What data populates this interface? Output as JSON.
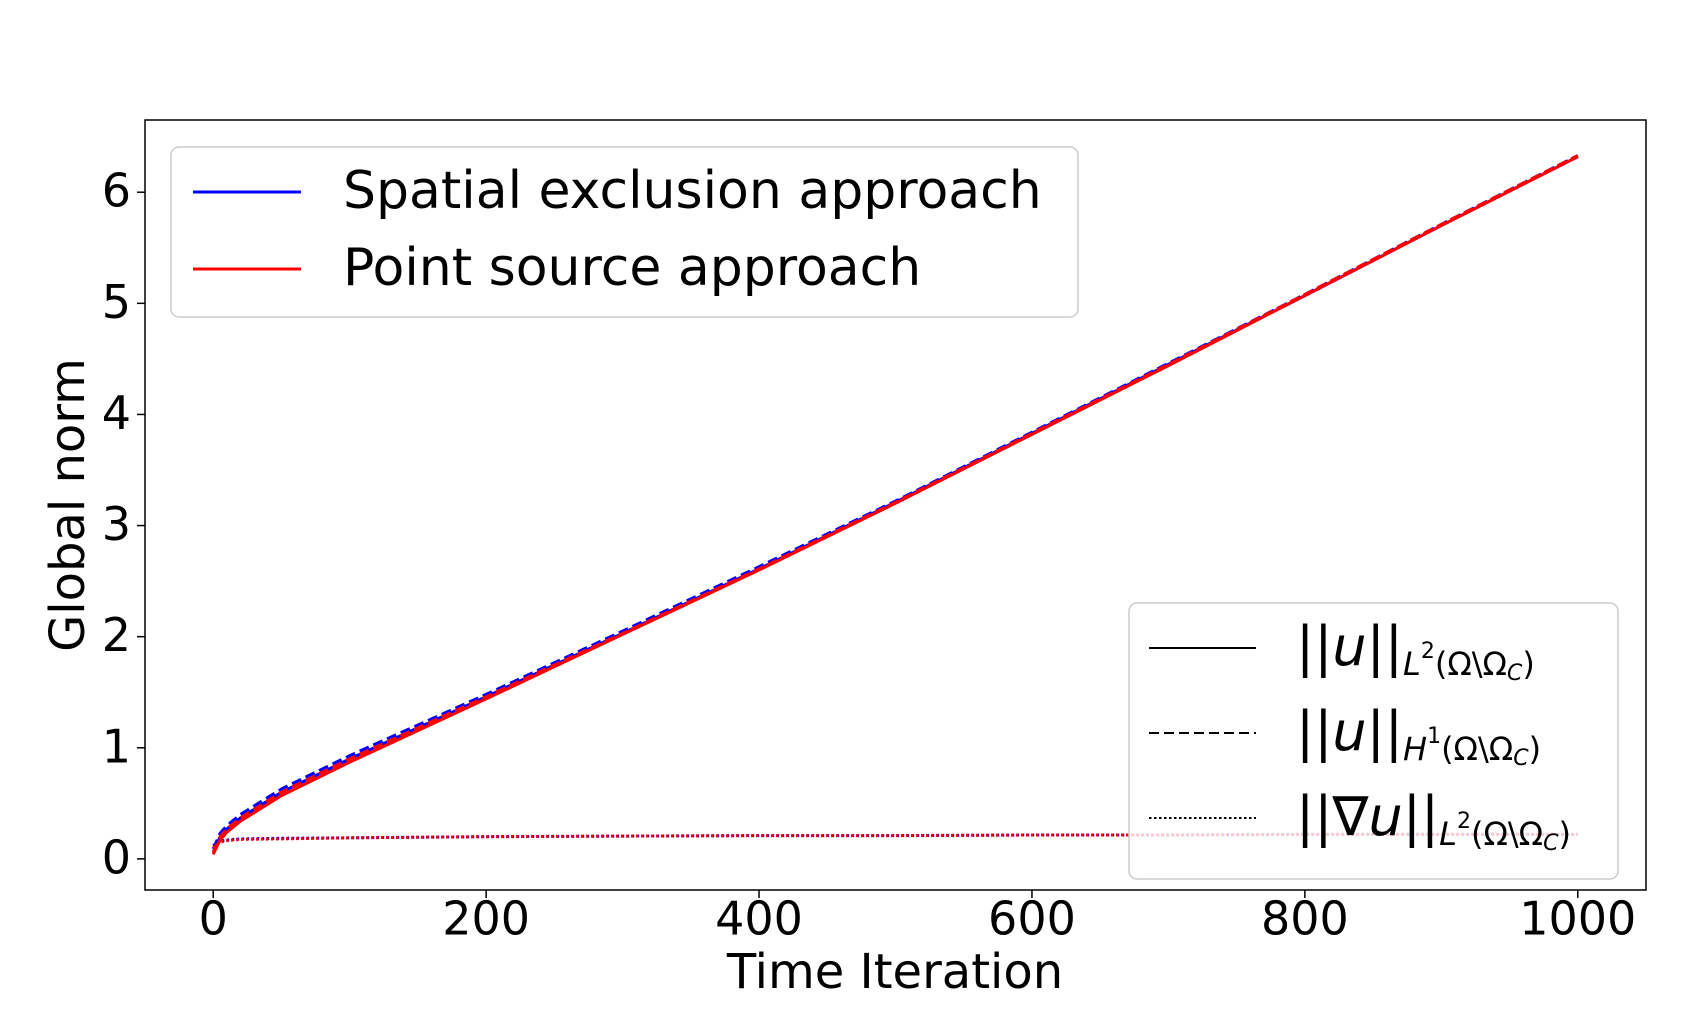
{
  "chart_data": {
    "type": "line",
    "xlabel": "Time Iteration",
    "ylabel": "Global norm",
    "xlim": [
      -50,
      1050
    ],
    "ylim": [
      -0.28,
      6.65
    ],
    "xticks": [
      0,
      200,
      400,
      600,
      800,
      1000
    ],
    "yticks": [
      0,
      1,
      2,
      3,
      4,
      5,
      6
    ],
    "x": [
      0,
      5,
      10,
      20,
      50,
      100,
      200,
      300,
      400,
      500,
      600,
      700,
      800,
      900,
      1000
    ],
    "norms": [
      {
        "main": "||u||",
        "space": "L",
        "power": "2",
        "domain": "(Ω\\Ω",
        "domain_sub": "C",
        "close": ")",
        "dash": "solid"
      },
      {
        "main": "||u||",
        "space": "H",
        "power": "1",
        "domain": "(Ω\\Ω",
        "domain_sub": "C",
        "close": ")",
        "dash": "dashed"
      },
      {
        "main": "||∇u||",
        "space": "L",
        "power": "2",
        "domain": "(Ω\\Ω",
        "domain_sub": "C",
        "close": ")",
        "dash": "dotted"
      }
    ],
    "series": [
      {
        "name": "Spatial exclusion approach",
        "color": "#0000ff",
        "values": [
          [
            0.06,
            0.2,
            0.27,
            0.37,
            0.6,
            0.9,
            1.46,
            2.03,
            2.61,
            3.21,
            3.83,
            4.45,
            5.07,
            5.7,
            6.32
          ],
          [
            0.09,
            0.23,
            0.3,
            0.4,
            0.63,
            0.93,
            1.48,
            2.05,
            2.63,
            3.22,
            3.84,
            4.46,
            5.08,
            5.71,
            6.33
          ],
          [
            0.12,
            0.16,
            0.17,
            0.18,
            0.185,
            0.19,
            0.2,
            0.205,
            0.21,
            0.21,
            0.215,
            0.215,
            0.22,
            0.22,
            0.22
          ]
        ]
      },
      {
        "name": "Point source approach",
        "color": "#ff0000",
        "values": [
          [
            0.04,
            0.17,
            0.24,
            0.34,
            0.57,
            0.87,
            1.44,
            2.02,
            2.6,
            3.2,
            3.82,
            4.44,
            5.07,
            5.7,
            6.32
          ],
          [
            0.06,
            0.2,
            0.27,
            0.37,
            0.6,
            0.9,
            1.46,
            2.03,
            2.61,
            3.21,
            3.83,
            4.45,
            5.08,
            5.71,
            6.33
          ],
          [
            0.1,
            0.15,
            0.165,
            0.175,
            0.18,
            0.19,
            0.2,
            0.205,
            0.21,
            0.21,
            0.215,
            0.215,
            0.22,
            0.22,
            0.22
          ]
        ]
      }
    ]
  }
}
